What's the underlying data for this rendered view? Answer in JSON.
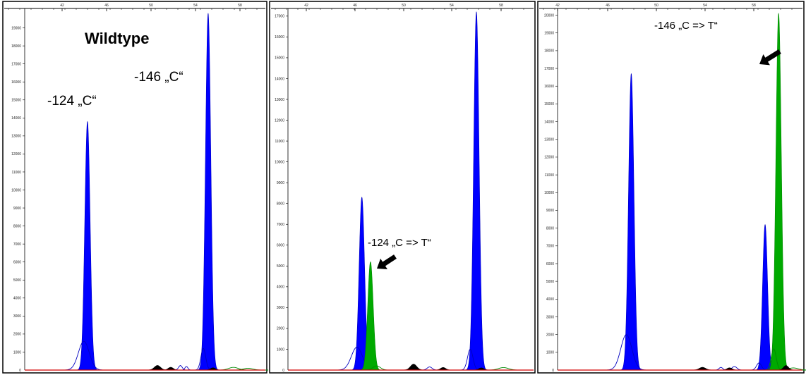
{
  "colors": {
    "blue": "#0000ff",
    "blue_outline": "#0000c0",
    "green": "#00aa00",
    "green_outline": "#008800",
    "black": "#000000",
    "baseline_red": "#d40000",
    "frame": "#000000"
  },
  "chart_data": [
    {
      "type": "area",
      "panel": "left",
      "title": "Wildtype",
      "x_tick_labels": [
        "42",
        "46",
        "50",
        "54",
        "58"
      ],
      "xlim": [
        40,
        60
      ],
      "ylim": [
        0,
        20000
      ],
      "y_tick_labels": [
        "1000",
        "2000",
        "3000",
        "4000",
        "5000",
        "6000",
        "7000",
        "8000",
        "9000",
        "10000",
        "11000",
        "12000",
        "13000",
        "14000",
        "15000",
        "16000",
        "17000",
        "18000",
        "19000"
      ],
      "series": [
        {
          "color": "blue",
          "peaks": [
            {
              "center": 45.2,
              "height": 13800,
              "width": 0.22
            },
            {
              "center": 44.9,
              "height": 1600,
              "width": 0.45
            },
            {
              "center": 55.2,
              "height": 19800,
              "width": 0.22
            },
            {
              "center": 54.8,
              "height": 1200,
              "width": 0.2
            },
            {
              "center": 52.9,
              "height": 250,
              "width": 0.15
            },
            {
              "center": 53.4,
              "height": 200,
              "width": 0.12
            }
          ]
        },
        {
          "color": "black",
          "peaks": [
            {
              "center": 51.0,
              "height": 250,
              "width": 0.25
            },
            {
              "center": 52.1,
              "height": 150,
              "width": 0.2
            },
            {
              "center": 55.6,
              "height": 120,
              "width": 0.2
            }
          ]
        },
        {
          "color": "green",
          "peaks": [
            {
              "center": 57.3,
              "height": 150,
              "width": 0.4
            },
            {
              "center": 58.5,
              "height": 100,
              "width": 0.4
            }
          ]
        }
      ],
      "annotations": [
        {
          "text": "Wildtype",
          "bold": true
        },
        {
          "text": "-124 „C“"
        },
        {
          "text": "-146 „C“"
        }
      ]
    },
    {
      "type": "area",
      "panel": "middle",
      "x_tick_labels": [
        "42",
        "46",
        "50",
        "54",
        "58"
      ],
      "xlim": [
        40,
        60
      ],
      "ylim": [
        0,
        17300
      ],
      "y_tick_labels": [
        "1000",
        "2000",
        "3000",
        "4000",
        "5000",
        "6000",
        "7000",
        "8000",
        "9000",
        "10000",
        "11000",
        "12000",
        "13000",
        "14000",
        "15000",
        "16000",
        "17000"
      ],
      "series": [
        {
          "color": "blue",
          "peaks": [
            {
              "center": 46.0,
              "height": 8300,
              "width": 0.22
            },
            {
              "center": 45.6,
              "height": 1100,
              "width": 0.45
            },
            {
              "center": 55.3,
              "height": 17200,
              "width": 0.22
            },
            {
              "center": 54.8,
              "height": 1000,
              "width": 0.22
            },
            {
              "center": 51.5,
              "height": 150,
              "width": 0.2
            }
          ]
        },
        {
          "color": "green",
          "peaks": [
            {
              "center": 46.7,
              "height": 5200,
              "width": 0.22
            },
            {
              "center": 47.2,
              "height": 200,
              "width": 0.3
            },
            {
              "center": 57.5,
              "height": 120,
              "width": 0.4
            }
          ]
        },
        {
          "color": "black",
          "peaks": [
            {
              "center": 50.2,
              "height": 280,
              "width": 0.25
            },
            {
              "center": 52.6,
              "height": 120,
              "width": 0.2
            },
            {
              "center": 55.7,
              "height": 100,
              "width": 0.2
            }
          ]
        }
      ],
      "annotations": [
        {
          "text": "-124 „C => T“"
        }
      ]
    },
    {
      "type": "area",
      "panel": "right",
      "x_tick_labels": [
        "42",
        "46",
        "50",
        "54",
        "58"
      ],
      "xlim": [
        40,
        60
      ],
      "ylim": [
        0,
        20300
      ],
      "y_tick_labels": [
        "1000",
        "2000",
        "3000",
        "4000",
        "5000",
        "6000",
        "7000",
        "8000",
        "9000",
        "10000",
        "11000",
        "12000",
        "13000",
        "14000",
        "15000",
        "16000",
        "17000",
        "18000",
        "19000",
        "20000"
      ],
      "series": [
        {
          "color": "blue",
          "peaks": [
            {
              "center": 46.0,
              "height": 16700,
              "width": 0.22
            },
            {
              "center": 45.6,
              "height": 2000,
              "width": 0.45
            },
            {
              "center": 56.9,
              "height": 8200,
              "width": 0.2
            },
            {
              "center": 56.4,
              "height": 400,
              "width": 0.2
            },
            {
              "center": 54.4,
              "height": 200,
              "width": 0.2
            },
            {
              "center": 53.3,
              "height": 150,
              "width": 0.15
            }
          ]
        },
        {
          "color": "green",
          "peaks": [
            {
              "center": 58.0,
              "height": 20100,
              "width": 0.22
            },
            {
              "center": 57.6,
              "height": 1200,
              "width": 0.2
            },
            {
              "center": 59.2,
              "height": 120,
              "width": 0.4
            }
          ]
        },
        {
          "color": "black",
          "peaks": [
            {
              "center": 51.8,
              "height": 150,
              "width": 0.25
            },
            {
              "center": 54.0,
              "height": 120,
              "width": 0.2
            },
            {
              "center": 58.6,
              "height": 250,
              "width": 0.2
            }
          ]
        }
      ],
      "annotations": [
        {
          "text": "-146 „C => T“"
        }
      ]
    }
  ]
}
